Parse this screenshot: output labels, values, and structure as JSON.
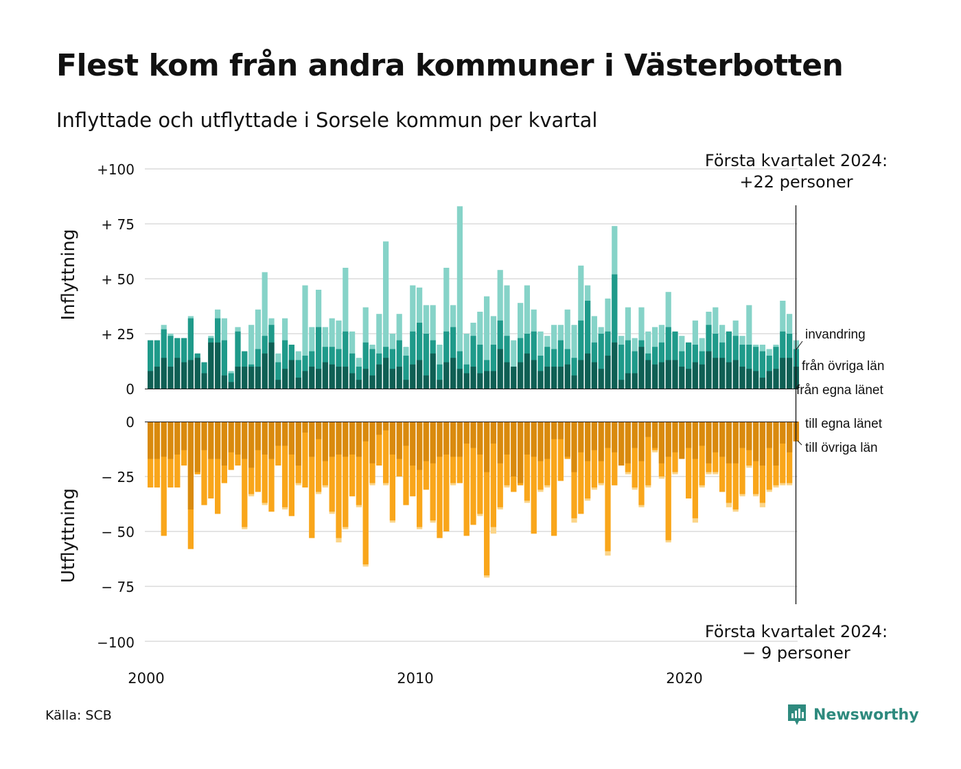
{
  "title": "Flest kom från andra kommuner i Västerbotten",
  "subtitle": "Inflyttade och utflyttade i Sorsele kommun per kvartal",
  "source": "Källa: SCB",
  "logo_text": "Newsworthy",
  "chart_data": {
    "type": "bar",
    "stacked": true,
    "x_start": "2000 Q1",
    "x_end": "2024 Q1",
    "x_tick_labels": [
      "2000",
      "2010",
      "2020"
    ],
    "y_tick_labels_top": [
      "+100",
      "+ 75",
      "+ 50",
      "+ 25",
      "0"
    ],
    "y_tick_labels_bottom": [
      "0",
      "− 25",
      "− 50",
      "− 75",
      "−100"
    ],
    "ylim_top": [
      0,
      100
    ],
    "ylim_bottom": [
      -100,
      0
    ],
    "ylabel_top": "Inflyttning",
    "ylabel_bottom": "Utflyttning",
    "grid": true,
    "annotation_top": [
      "Första kvartalet 2024:",
      "+22 personer"
    ],
    "annotation_bottom": [
      "Första kvartalet 2024:",
      "− 9 personer"
    ],
    "colors": {
      "from_own_county": "#0f5f54",
      "from_other_counties": "#1f9a8a",
      "immigration": "#86d3c8",
      "to_own_county": "#d98a0e",
      "to_other_counties": "#f9a61b",
      "emigration": "#fbd589",
      "grid": "#dcdcdc"
    },
    "series_labels": {
      "immigration": "invandring",
      "from_other_counties": "från övriga län",
      "from_own_county": "från egna länet",
      "to_own_county": "till egna länet",
      "to_other_counties": "till övriga län"
    },
    "in_totals": [
      22,
      22,
      29,
      25,
      23,
      23,
      33,
      16,
      12,
      24,
      36,
      32,
      8,
      28,
      17,
      29,
      36,
      53,
      32,
      16,
      32,
      20,
      17,
      47,
      28,
      45,
      28,
      32,
      31,
      55,
      26,
      14,
      37,
      20,
      34,
      67,
      25,
      34,
      19,
      47,
      46,
      38,
      38,
      20,
      55,
      38,
      83,
      25,
      30,
      35,
      42,
      33,
      54,
      47,
      22,
      39,
      47,
      36,
      26,
      24,
      29,
      29,
      36,
      29,
      56,
      47,
      33,
      28,
      41,
      74,
      24,
      37,
      23,
      37,
      26,
      28,
      29,
      44,
      25,
      24,
      21,
      31,
      23,
      35,
      37,
      29,
      26,
      31,
      24,
      38,
      20,
      20,
      18,
      20,
      40,
      34,
      22
    ],
    "in_from_other_counties": [
      22,
      22,
      27,
      24,
      23,
      23,
      32,
      16,
      12,
      23,
      32,
      22,
      7,
      26,
      17,
      11,
      18,
      24,
      29,
      12,
      22,
      20,
      13,
      15,
      17,
      28,
      19,
      19,
      18,
      26,
      16,
      10,
      21,
      18,
      16,
      19,
      18,
      22,
      15,
      26,
      30,
      25,
      22,
      11,
      26,
      28,
      17,
      11,
      24,
      20,
      13,
      20,
      31,
      24,
      10,
      23,
      25,
      26,
      15,
      19,
      18,
      22,
      18,
      14,
      31,
      40,
      21,
      25,
      26,
      52,
      20,
      22,
      17,
      22,
      16,
      19,
      21,
      28,
      26,
      17,
      21,
      20,
      17,
      29,
      25,
      21,
      26,
      24,
      20,
      20,
      19,
      17,
      15,
      19,
      26,
      25,
      18
    ],
    "in_from_own_county": [
      8,
      10,
      14,
      10,
      14,
      12,
      13,
      14,
      7,
      21,
      21,
      6,
      3,
      10,
      10,
      10,
      10,
      16,
      21,
      4,
      9,
      13,
      5,
      8,
      10,
      9,
      12,
      11,
      10,
      10,
      7,
      4,
      9,
      6,
      11,
      14,
      9,
      10,
      4,
      11,
      13,
      6,
      16,
      4,
      12,
      14,
      9,
      7,
      10,
      7,
      8,
      8,
      18,
      12,
      10,
      12,
      16,
      13,
      8,
      10,
      10,
      10,
      11,
      6,
      13,
      16,
      12,
      9,
      15,
      21,
      4,
      7,
      7,
      19,
      13,
      11,
      12,
      13,
      13,
      10,
      9,
      12,
      11,
      17,
      14,
      14,
      12,
      13,
      10,
      9,
      8,
      5,
      8,
      9,
      14,
      14,
      10
    ],
    "out_totals": [
      30,
      30,
      52,
      30,
      30,
      20,
      58,
      24,
      38,
      35,
      42,
      28,
      22,
      20,
      49,
      34,
      32,
      38,
      41,
      20,
      40,
      43,
      29,
      30,
      53,
      33,
      30,
      42,
      55,
      49,
      34,
      39,
      66,
      29,
      20,
      29,
      46,
      25,
      38,
      34,
      49,
      31,
      46,
      53,
      50,
      29,
      28,
      52,
      47,
      43,
      71,
      51,
      40,
      30,
      32,
      29,
      37,
      51,
      32,
      30,
      52,
      27,
      17,
      46,
      42,
      36,
      31,
      29,
      61,
      29,
      20,
      24,
      31,
      39,
      30,
      14,
      26,
      55,
      24,
      14,
      35,
      46,
      30,
      24,
      24,
      32,
      39,
      41,
      34,
      21,
      34,
      39,
      32,
      30,
      29,
      29,
      9
    ],
    "out_to_other_counties": [
      30,
      30,
      52,
      30,
      30,
      20,
      58,
      24,
      38,
      35,
      42,
      28,
      22,
      20,
      48,
      33,
      32,
      37,
      41,
      20,
      39,
      43,
      28,
      30,
      53,
      32,
      29,
      41,
      53,
      48,
      34,
      38,
      65,
      28,
      20,
      28,
      45,
      25,
      38,
      34,
      48,
      31,
      45,
      53,
      50,
      28,
      28,
      52,
      47,
      42,
      70,
      48,
      39,
      29,
      32,
      29,
      36,
      51,
      31,
      29,
      52,
      27,
      17,
      44,
      42,
      35,
      30,
      28,
      59,
      29,
      20,
      23,
      30,
      38,
      29,
      13,
      25,
      54,
      23,
      13,
      35,
      44,
      29,
      23,
      23,
      32,
      37,
      40,
      33,
      20,
      33,
      37,
      31,
      29,
      28,
      28,
      9
    ],
    "out_to_own_county": [
      17,
      17,
      16,
      17,
      15,
      13,
      40,
      23,
      13,
      17,
      17,
      20,
      14,
      15,
      17,
      21,
      13,
      15,
      17,
      11,
      11,
      15,
      20,
      5,
      16,
      8,
      18,
      16,
      15,
      16,
      15,
      16,
      9,
      19,
      6,
      4,
      15,
      17,
      11,
      20,
      22,
      18,
      19,
      16,
      15,
      16,
      16,
      10,
      12,
      15,
      23,
      10,
      19,
      15,
      25,
      28,
      15,
      16,
      18,
      17,
      8,
      8,
      16,
      23,
      14,
      18,
      13,
      18,
      12,
      14,
      20,
      19,
      12,
      18,
      7,
      12,
      19,
      16,
      14,
      17,
      12,
      17,
      11,
      19,
      14,
      16,
      19,
      19,
      12,
      13,
      18,
      20,
      12,
      20,
      10,
      14,
      9
    ]
  }
}
